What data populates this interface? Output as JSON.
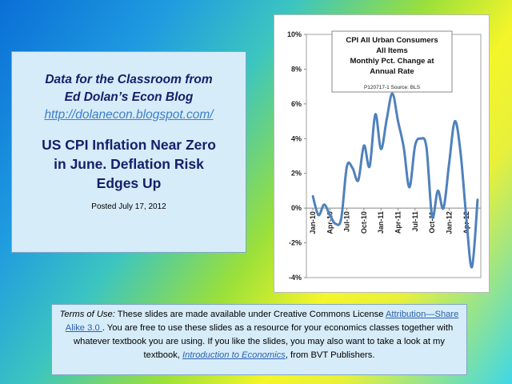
{
  "title_panel": {
    "blog_line1": "Data for the Classroom from",
    "blog_line2": "Ed Dolan’s Econ Blog",
    "url": "http://dolanecon.blogspot.com/",
    "headline_line1": "US CPI Inflation Near Zero",
    "headline_line2": "in June. Deflation Risk",
    "headline_line3": "Edges Up",
    "posted": "Posted  July 17, 2012"
  },
  "terms": {
    "label": "Terms of Use:",
    "text1": " These slides are made available under Creative Commons License ",
    "link1": "Attribution—Share Alike 3.0 ",
    "text2": ". You are free to use these slides as a resource for your economics classes together with whatever textbook you are using. If you like the slides, you may also want to take a look at my textbook, ",
    "link2": "Introduction to Economics",
    "text3": ", from BVT Publishers."
  },
  "chart_data": {
    "type": "line",
    "title_lines": [
      "CPI All Urban Consumers",
      "All Items",
      "Monthly Pct. Change at",
      "Annual Rate"
    ],
    "source": "P120717-1 Source: BLS",
    "y_ticks": [
      "10%",
      "8%",
      "6%",
      "4%",
      "2%",
      "0%",
      "-2%",
      "-4%"
    ],
    "ylim": [
      -4,
      10
    ],
    "x_tick_labels": [
      "Jan-10",
      "Apr-10",
      "Jul-10",
      "Oct-10",
      "Jan-11",
      "Apr-11",
      "Jul-11",
      "Oct-11",
      "Jan-12",
      "Apr-12"
    ],
    "grid": false,
    "series_color": "#4f81bd",
    "series": [
      {
        "name": "",
        "x": [
          "Jan-10",
          "Feb-10",
          "Mar-10",
          "Apr-10",
          "May-10",
          "Jun-10",
          "Jul-10",
          "Aug-10",
          "Sep-10",
          "Oct-10",
          "Nov-10",
          "Dec-10",
          "Jan-11",
          "Feb-11",
          "Mar-11",
          "Apr-11",
          "May-11",
          "Jun-11",
          "Jul-11",
          "Aug-11",
          "Sep-11",
          "Oct-11",
          "Nov-11",
          "Dec-11",
          "Jan-12",
          "Feb-12",
          "Mar-12",
          "Apr-12",
          "May-12",
          "Jun-12"
        ],
        "values": [
          0.7,
          -0.4,
          0.2,
          -0.4,
          -0.9,
          -0.6,
          2.4,
          2.3,
          1.6,
          3.6,
          2.4,
          5.4,
          3.4,
          5.1,
          6.6,
          5.0,
          3.5,
          1.2,
          3.6,
          4.0,
          3.5,
          -0.5,
          1.0,
          0.0,
          2.6,
          5.0,
          3.2,
          -0.5,
          -3.4,
          0.5
        ]
      }
    ]
  }
}
